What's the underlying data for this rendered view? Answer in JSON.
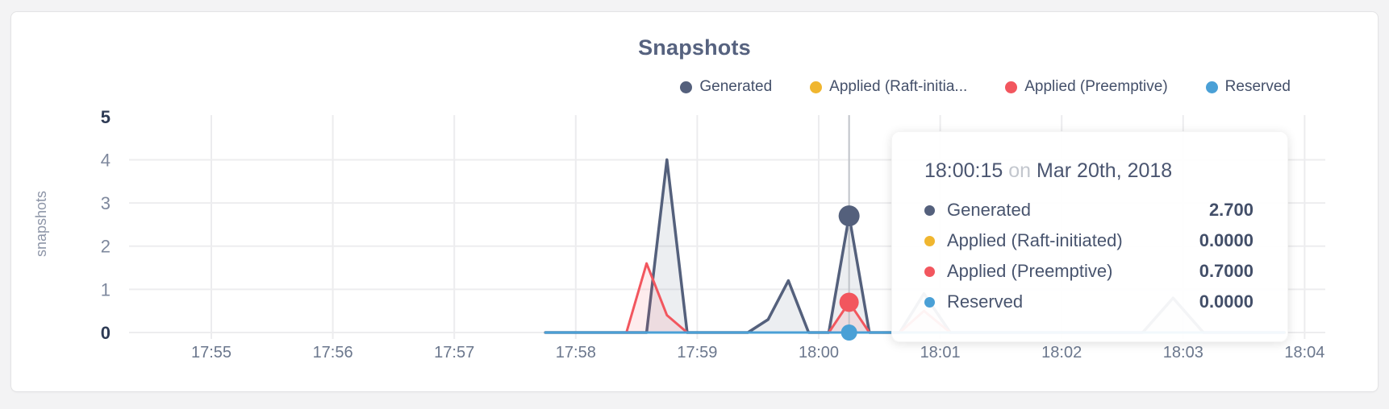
{
  "page": {
    "background": "#f3f3f4",
    "card_bg": "#ffffff",
    "card_border": "#e3e3e5"
  },
  "header": {
    "title": "Snapshots"
  },
  "legend": {
    "items": [
      {
        "label": "Generated",
        "color": "#54607c"
      },
      {
        "label": "Applied (Raft-initia...",
        "color": "#f0b62f"
      },
      {
        "label": "Applied (Preemptive)",
        "color": "#f2565e"
      },
      {
        "label": "Reserved",
        "color": "#4aa0d6"
      }
    ]
  },
  "tooltip": {
    "time": "18:00:15",
    "separator": "on",
    "date": "Mar 20th, 2018",
    "rows": [
      {
        "label": "Generated",
        "color": "#54607c",
        "value": "2.700"
      },
      {
        "label": "Applied (Raft-initiated)",
        "color": "#f0b62f",
        "value": "0.0000"
      },
      {
        "label": "Applied (Preemptive)",
        "color": "#f2565e",
        "value": "0.7000"
      },
      {
        "label": "Reserved",
        "color": "#4aa0d6",
        "value": "0.0000"
      }
    ]
  },
  "chart_data": {
    "type": "area",
    "title": "Snapshots",
    "xlabel": "",
    "ylabel": "snapshots",
    "ylim": [
      0,
      5
    ],
    "y_ticks": [
      0,
      1,
      2,
      3,
      4,
      5
    ],
    "x_ticks": [
      "17:55",
      "17:56",
      "17:57",
      "17:58",
      "17:59",
      "18:00",
      "18:01",
      "18:02",
      "18:03",
      "18:04"
    ],
    "grid": true,
    "legend_position": "top-right",
    "hover_time": "18:00:15",
    "hover_date": "Mar 20th, 2018",
    "series": [
      {
        "name": "Generated",
        "color": "#54607c",
        "fill": "rgba(84,96,124,0.11)",
        "points": [
          [
            "17:57:45",
            0
          ],
          [
            "17:58:35",
            0
          ],
          [
            "17:58:45",
            4.0
          ],
          [
            "17:58:55",
            0
          ],
          [
            "17:59:25",
            0
          ],
          [
            "17:59:35",
            0.3
          ],
          [
            "17:59:45",
            1.2
          ],
          [
            "17:59:55",
            0
          ],
          [
            "18:00:05",
            0
          ],
          [
            "18:00:15",
            2.7
          ],
          [
            "18:00:25",
            0
          ],
          [
            "18:00:40",
            0
          ],
          [
            "18:00:52",
            0.9
          ],
          [
            "18:01:05",
            0
          ],
          [
            "18:02:40",
            0
          ],
          [
            "18:02:55",
            0.8
          ],
          [
            "18:03:10",
            0
          ],
          [
            "18:03:50",
            0
          ]
        ]
      },
      {
        "name": "Applied (Raft-initiated)",
        "color": "#f0b62f",
        "fill": "rgba(240,182,47,0.11)",
        "points": [
          [
            "17:57:45",
            0
          ],
          [
            "18:03:50",
            0
          ]
        ]
      },
      {
        "name": "Applied (Preemptive)",
        "color": "#f2565e",
        "fill": "rgba(242,86,94,0.11)",
        "points": [
          [
            "17:57:45",
            0
          ],
          [
            "17:58:25",
            0
          ],
          [
            "17:58:35",
            1.6
          ],
          [
            "17:58:45",
            0.4
          ],
          [
            "17:58:55",
            0
          ],
          [
            "18:00:05",
            0
          ],
          [
            "18:00:15",
            0.7
          ],
          [
            "18:00:25",
            0
          ],
          [
            "18:00:40",
            0
          ],
          [
            "18:00:52",
            0.5
          ],
          [
            "18:01:05",
            0
          ],
          [
            "18:03:50",
            0
          ]
        ]
      },
      {
        "name": "Reserved",
        "color": "#4aa0d6",
        "fill": "none",
        "points": [
          [
            "17:57:45",
            0
          ],
          [
            "18:03:50",
            0
          ]
        ]
      }
    ],
    "hover_values": {
      "Generated": 2.7,
      "Applied (Raft-initiated)": 0.0,
      "Applied (Preemptive)": 0.7,
      "Reserved": 0.0
    }
  }
}
